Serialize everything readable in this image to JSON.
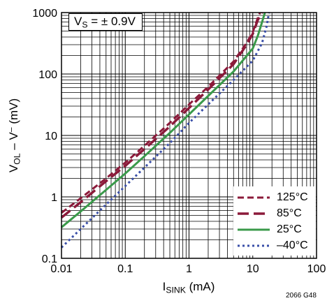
{
  "chart_data": {
    "type": "line",
    "xscale": "log",
    "yscale": "log",
    "xlim": [
      0.01,
      100
    ],
    "ylim": [
      0.1,
      1000
    ],
    "grid": true,
    "legend_placement": "bottom-right",
    "xlabel": {
      "main": "I",
      "sub": "SINK",
      "after": " (mA)"
    },
    "ylabel": {
      "main": "V",
      "sub": "OL",
      "mid": " – V",
      "sup": "–",
      "after": " (mV)"
    },
    "annotation": {
      "main": "V",
      "sub": "S",
      "after": " = ± 0.9V"
    },
    "figure_code": "2066 G48",
    "x_ticks": [
      {
        "value": 0.01,
        "label": "0.01"
      },
      {
        "value": 0.1,
        "label": "0.1"
      },
      {
        "value": 1,
        "label": "1"
      },
      {
        "value": 10,
        "label": "10"
      },
      {
        "value": 100,
        "label": "100"
      }
    ],
    "y_ticks": [
      {
        "value": 0.1,
        "label": "0.1"
      },
      {
        "value": 1,
        "label": "1"
      },
      {
        "value": 10,
        "label": "10"
      },
      {
        "value": 100,
        "label": "100"
      },
      {
        "value": 1000,
        "label": "1000"
      }
    ],
    "series": [
      {
        "name": "125°C",
        "color": "#8b1a3a",
        "style": "dash",
        "points": [
          [
            0.01,
            0.55
          ],
          [
            0.02,
            0.95
          ],
          [
            0.05,
            2.0
          ],
          [
            0.1,
            3.6
          ],
          [
            0.2,
            6.8
          ],
          [
            0.5,
            16
          ],
          [
            1,
            32
          ],
          [
            2,
            62
          ],
          [
            5,
            160
          ],
          [
            8,
            320
          ],
          [
            10,
            480
          ],
          [
            12,
            820
          ],
          [
            13,
            1000
          ]
        ]
      },
      {
        "name": "85°C",
        "color": "#8b1a3a",
        "style": "longdash",
        "points": [
          [
            0.01,
            0.46
          ],
          [
            0.02,
            0.82
          ],
          [
            0.05,
            1.8
          ],
          [
            0.1,
            3.2
          ],
          [
            0.2,
            6.0
          ],
          [
            0.5,
            14
          ],
          [
            1,
            28
          ],
          [
            2,
            56
          ],
          [
            5,
            145
          ],
          [
            8,
            300
          ],
          [
            10,
            450
          ],
          [
            12,
            760
          ],
          [
            14,
            1000
          ]
        ]
      },
      {
        "name": "25°C",
        "color": "#3a9a4a",
        "style": "solid",
        "points": [
          [
            0.01,
            0.32
          ],
          [
            0.02,
            0.58
          ],
          [
            0.05,
            1.3
          ],
          [
            0.1,
            2.4
          ],
          [
            0.2,
            4.6
          ],
          [
            0.5,
            11
          ],
          [
            1,
            22
          ],
          [
            2,
            44
          ],
          [
            5,
            110
          ],
          [
            10,
            260
          ],
          [
            12,
            420
          ],
          [
            14,
            700
          ],
          [
            15.5,
            1000
          ]
        ]
      },
      {
        "name": "–40°C",
        "color": "#3a4fa8",
        "style": "dot",
        "points": [
          [
            0.01,
            0.15
          ],
          [
            0.02,
            0.3
          ],
          [
            0.05,
            0.75
          ],
          [
            0.1,
            1.5
          ],
          [
            0.2,
            3.0
          ],
          [
            0.5,
            7.5
          ],
          [
            1,
            16
          ],
          [
            2,
            32
          ],
          [
            5,
            80
          ],
          [
            10,
            165
          ],
          [
            14,
            320
          ],
          [
            16.5,
            600
          ],
          [
            18,
            1000
          ]
        ]
      }
    ]
  }
}
